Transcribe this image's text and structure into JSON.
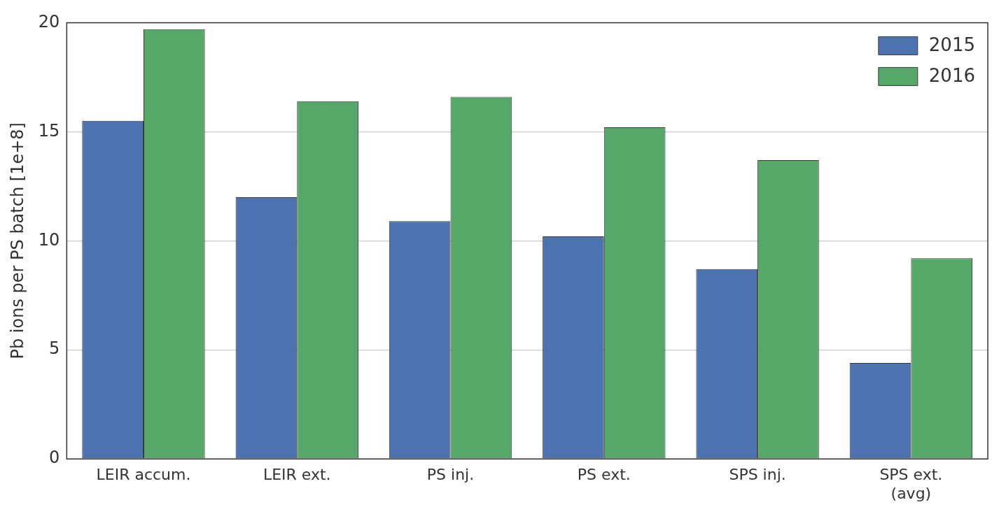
{
  "chart_data": {
    "type": "bar",
    "ylabel": "Pb ions per PS batch [1e+8]",
    "categories": [
      "LEIR accum.",
      "LEIR ext.",
      "PS inj.",
      "PS ext.",
      "SPS inj.",
      "SPS ext.\n(avg)"
    ],
    "series": [
      {
        "name": "2015",
        "color": "#4c72b0",
        "values": [
          15.5,
          12.0,
          10.9,
          10.2,
          8.7,
          4.4
        ]
      },
      {
        "name": "2016",
        "color": "#55a868",
        "values": [
          19.7,
          16.4,
          16.6,
          15.2,
          13.7,
          9.2
        ]
      }
    ],
    "ylim": [
      0,
      20
    ],
    "yticks": [
      0,
      5,
      10,
      15,
      20
    ],
    "grid": "y",
    "legend": "top right"
  }
}
